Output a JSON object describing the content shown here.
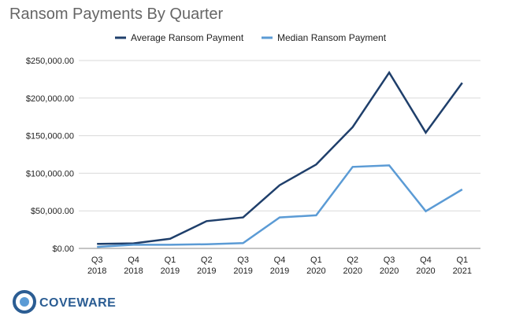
{
  "chart_data": {
    "type": "line",
    "title": "Ransom Payments By Quarter",
    "categories": [
      [
        "Q3",
        "2018"
      ],
      [
        "Q4",
        "2018"
      ],
      [
        "Q1",
        "2019"
      ],
      [
        "Q2",
        "2019"
      ],
      [
        "Q3",
        "2019"
      ],
      [
        "Q4",
        "2019"
      ],
      [
        "Q1",
        "2020"
      ],
      [
        "Q2",
        "2020"
      ],
      [
        "Q3",
        "2020"
      ],
      [
        "Q4",
        "2020"
      ],
      [
        "Q1",
        "2021"
      ]
    ],
    "series": [
      {
        "name": "Average Ransom Payment",
        "color": "#1f3f6b",
        "values": [
          6000,
          6700,
          12800,
          36300,
          41200,
          84100,
          111600,
          161400,
          234000,
          154100,
          220300
        ]
      },
      {
        "name": "Median Ransom Payment",
        "color": "#5b9bd5",
        "values": [
          2000,
          4800,
          4800,
          5500,
          7000,
          41200,
          44000,
          108500,
          110500,
          49500,
          78400
        ]
      }
    ],
    "ylim": [
      0,
      250000
    ],
    "yticks": [
      "$0.00",
      "$50,000.00",
      "$100,000.00",
      "$150,000.00",
      "$200,000.00",
      "$250,000.00"
    ],
    "ytick_values": [
      0,
      50000,
      100000,
      150000,
      200000,
      250000
    ],
    "grid": true,
    "legend_position": "top"
  },
  "branding": {
    "logo_text": "COVEWARE",
    "logo_color": "#2b5d93"
  }
}
